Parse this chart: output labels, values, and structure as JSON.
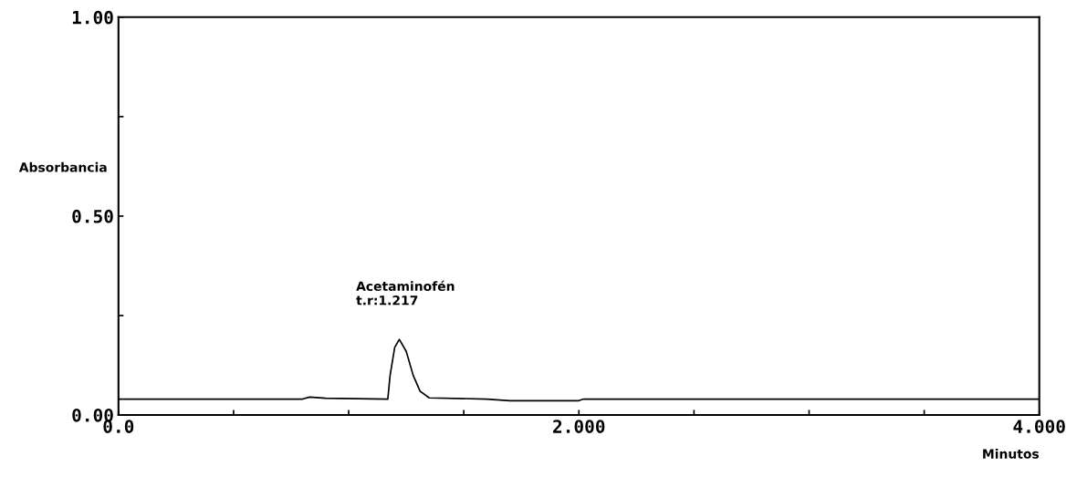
{
  "chart_data": {
    "type": "line",
    "xlabel": "Minutos",
    "ylabel": "Absorbancia",
    "x": [
      0,
      0.4,
      0.8,
      0.83,
      0.9,
      1.17,
      1.18,
      1.2,
      1.22,
      1.25,
      1.28,
      1.31,
      1.35,
      1.6,
      1.7,
      2.0,
      2.02,
      2.5,
      3.0,
      3.5,
      4.0
    ],
    "series": [
      {
        "color": "#000000",
        "values": [
          0.04,
          0.04,
          0.04,
          0.045,
          0.042,
          0.04,
          0.1,
          0.17,
          0.19,
          0.16,
          0.1,
          0.06,
          0.043,
          0.04,
          0.036,
          0.036,
          0.04,
          0.04,
          0.04,
          0.04,
          0.04
        ]
      }
    ],
    "annotations": [
      "Acetaminofén\nt.r:1.217"
    ],
    "xlim": [
      0,
      4
    ],
    "ylim": [
      0,
      1
    ],
    "xticks": [
      {
        "value": 0,
        "label": "0.0"
      },
      {
        "value": 0.5,
        "label": null
      },
      {
        "value": 1,
        "label": null
      },
      {
        "value": 1.5,
        "label": null
      },
      {
        "value": 2,
        "label": "2.000"
      },
      {
        "value": 2.5,
        "label": null
      },
      {
        "value": 3,
        "label": null
      },
      {
        "value": 3.5,
        "label": null
      },
      {
        "value": 4,
        "label": "4.000"
      }
    ],
    "yticks": [
      {
        "value": 0,
        "label": "0.00"
      },
      {
        "value": 0.25,
        "label": null
      },
      {
        "value": 0.5,
        "label": "0.50"
      },
      {
        "value": 0.75,
        "label": null
      },
      {
        "value": 1,
        "label": "1.00"
      }
    ],
    "grid": false,
    "legend": false,
    "marker": "none",
    "line_style": "solid"
  }
}
